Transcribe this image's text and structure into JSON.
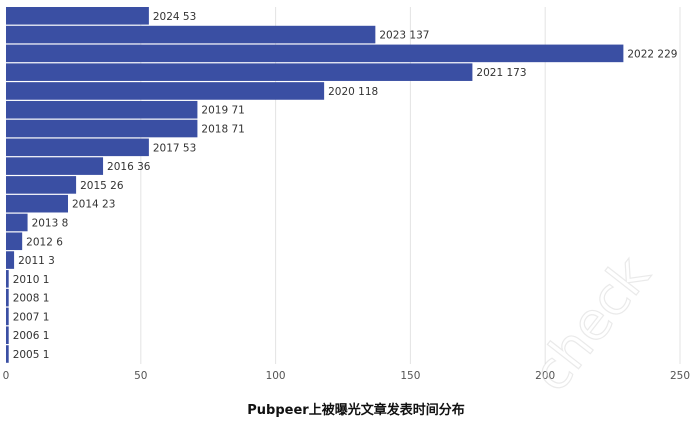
{
  "chart_data": {
    "type": "bar",
    "orientation": "horizontal",
    "title": "Pubpeer上被曝光文章发表时间分布",
    "categories": [
      "2024",
      "2023",
      "2022",
      "2021",
      "2020",
      "2019",
      "2018",
      "2017",
      "2016",
      "2015",
      "2014",
      "2013",
      "2012",
      "2011",
      "2010",
      "2008",
      "2007",
      "2006",
      "2005"
    ],
    "values": [
      53,
      137,
      229,
      173,
      118,
      71,
      71,
      53,
      36,
      26,
      23,
      8,
      6,
      3,
      1,
      1,
      1,
      1,
      1
    ],
    "xlim": [
      0,
      250
    ],
    "xticks": [
      0,
      50,
      100,
      150,
      200,
      250
    ],
    "grid": true,
    "bar_color": "#3a4fa3"
  },
  "watermark": "check"
}
